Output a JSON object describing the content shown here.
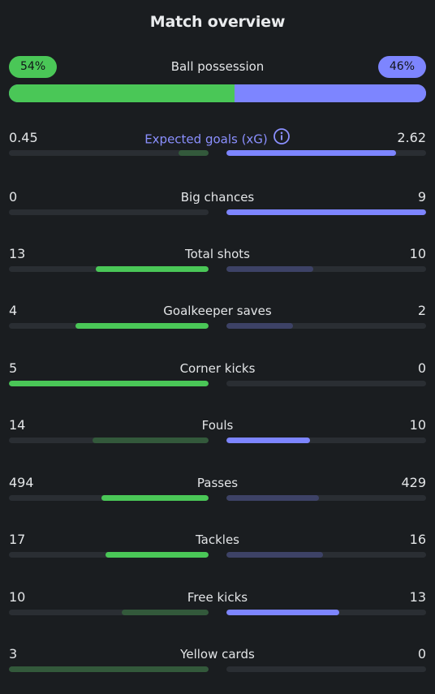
{
  "title": "Match overview",
  "possession": {
    "label": "Ball possession",
    "home": "54%",
    "away": "46%",
    "home_fraction": 0.54
  },
  "colors": {
    "home_strong": "#4ac757",
    "home_weak": "#33593b",
    "away_strong": "#7d85ff",
    "away_weak": "#3d4266",
    "track": "#2a2e33",
    "accent_label": "#8b90ff"
  },
  "stats": [
    {
      "label": "Expected goals (xG)",
      "home": "0.45",
      "away": "2.62",
      "home_ratio": 0.15,
      "away_ratio": 0.85,
      "winner": "away",
      "info_icon": "info-icon"
    },
    {
      "label": "Big chances",
      "home": "0",
      "away": "9",
      "home_ratio": 0.0,
      "away_ratio": 1.0,
      "winner": "away"
    },
    {
      "label": "Total shots",
      "home": "13",
      "away": "10",
      "home_ratio": 0.565,
      "away_ratio": 0.435,
      "winner": "home"
    },
    {
      "label": "Goalkeeper saves",
      "home": "4",
      "away": "2",
      "home_ratio": 0.667,
      "away_ratio": 0.333,
      "winner": "home"
    },
    {
      "label": "Corner kicks",
      "home": "5",
      "away": "0",
      "home_ratio": 1.0,
      "away_ratio": 0.0,
      "winner": "home"
    },
    {
      "label": "Fouls",
      "home": "14",
      "away": "10",
      "home_ratio": 0.583,
      "away_ratio": 0.417,
      "winner": "away"
    },
    {
      "label": "Passes",
      "home": "494",
      "away": "429",
      "home_ratio": 0.535,
      "away_ratio": 0.465,
      "winner": "home"
    },
    {
      "label": "Tackles",
      "home": "17",
      "away": "16",
      "home_ratio": 0.515,
      "away_ratio": 0.485,
      "winner": "home"
    },
    {
      "label": "Free kicks",
      "home": "10",
      "away": "13",
      "home_ratio": 0.435,
      "away_ratio": 0.565,
      "winner": "away"
    },
    {
      "label": "Yellow cards",
      "home": "3",
      "away": "0",
      "home_ratio": 1.0,
      "away_ratio": 0.0,
      "winner": "away"
    }
  ]
}
